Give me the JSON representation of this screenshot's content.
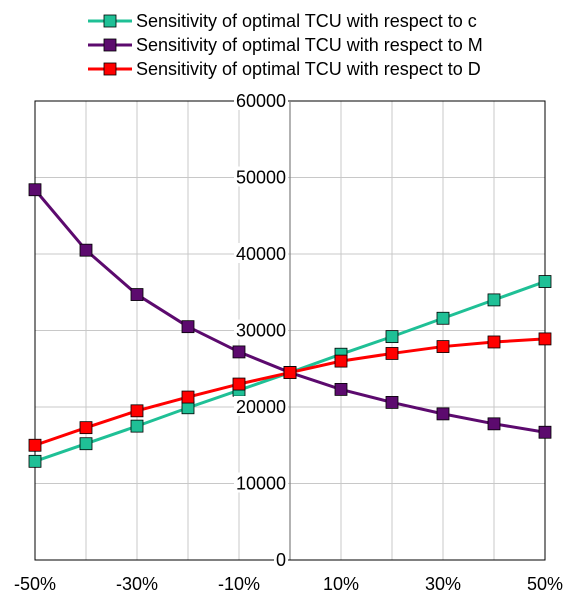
{
  "chart_data": {
    "type": "line",
    "x": [
      -50,
      -40,
      -30,
      -20,
      -10,
      0,
      10,
      20,
      30,
      40,
      50
    ],
    "xticks": [
      "-50%",
      "-30%",
      "-10%",
      "10%",
      "30%",
      "50%"
    ],
    "xtick_values": [
      -50,
      -30,
      -10,
      10,
      30,
      50
    ],
    "xlim": [
      -50,
      50
    ],
    "ylim": [
      0,
      60000
    ],
    "yticks": [
      "0",
      "10000",
      "20000",
      "30000",
      "40000",
      "50000",
      "60000"
    ],
    "ytick_values": [
      0,
      10000,
      20000,
      30000,
      40000,
      50000,
      60000
    ],
    "grid": true,
    "legend_position": "top",
    "series": [
      {
        "name": "Sensitivity of optimal TCU with respect to c",
        "color": "#1fc096",
        "values": [
          12900,
          15200,
          17500,
          19900,
          22200,
          24500,
          26900,
          29200,
          31600,
          34000,
          36400
        ]
      },
      {
        "name": "Sensitivity of optimal TCU with respect to M",
        "color": "#5c0a6e",
        "values": [
          48400,
          40500,
          34700,
          30500,
          27200,
          24500,
          22300,
          20600,
          19100,
          17800,
          16700
        ]
      },
      {
        "name": "Sensitivity of optimal TCU with respect to D",
        "color": "#ff0000",
        "values": [
          15000,
          17300,
          19500,
          21300,
          23000,
          24500,
          26000,
          27000,
          27900,
          28500,
          28900
        ]
      }
    ]
  }
}
